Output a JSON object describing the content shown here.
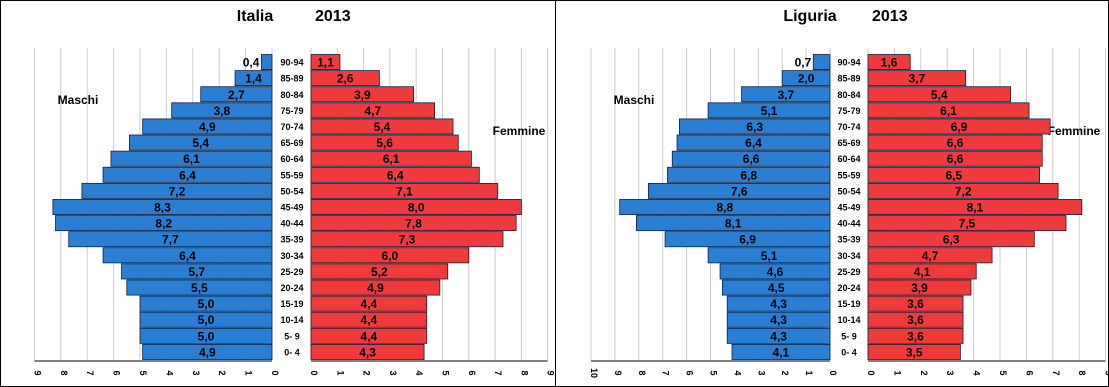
{
  "colors": {
    "male": "#2a7fd4",
    "female": "#ef3b3b",
    "grid": "#cccccc",
    "bar_edge": "#0f1f3a"
  },
  "chart_data": [
    {
      "type": "bar",
      "orientation": "horizontal-population-pyramid",
      "title_region": "Italia",
      "title_year": "2013",
      "left_label": "Maschi",
      "right_label": "Femmine",
      "categories": [
        "0- 4",
        "5- 9",
        "10-14",
        "15-19",
        "20-24",
        "25-29",
        "30-34",
        "35-39",
        "40-44",
        "45-49",
        "50-54",
        "55-59",
        "60-64",
        "65-69",
        "70-74",
        "75-79",
        "80-84",
        "85-89",
        "90-94"
      ],
      "series": [
        {
          "name": "Maschi",
          "values": [
            4.9,
            5.0,
            5.0,
            5.0,
            5.5,
            5.7,
            6.4,
            7.7,
            8.2,
            8.3,
            7.2,
            6.4,
            6.1,
            5.4,
            4.9,
            3.8,
            2.7,
            1.4,
            0.4
          ]
        },
        {
          "name": "Femmine",
          "values": [
            4.3,
            4.4,
            4.4,
            4.4,
            4.9,
            5.2,
            6.0,
            7.3,
            7.8,
            8.0,
            7.1,
            6.4,
            6.1,
            5.6,
            5.4,
            4.7,
            3.9,
            2.6,
            1.1
          ]
        }
      ],
      "male_labels": [
        "4,9",
        "5,0",
        "5,0",
        "5,0",
        "5,5",
        "5,7",
        "6,4",
        "7,7",
        "8,2",
        "8,3",
        "7,2",
        "6,4",
        "6,1",
        "5,4",
        "4,9",
        "3,8",
        "2,7",
        "1,4",
        "0,4"
      ],
      "female_labels": [
        "4,3",
        "4,4",
        "4,4",
        "4,4",
        "4,9",
        "5,2",
        "6,0",
        "7,3",
        "7,8",
        "8,0",
        "7,1",
        "6,4",
        "6,1",
        "5,6",
        "5,4",
        "4,7",
        "3,9",
        "2,6",
        "1,1"
      ],
      "left_ticks": [
        "9",
        "8",
        "7",
        "6",
        "5",
        "4",
        "3",
        "2",
        "1",
        "0"
      ],
      "right_ticks": [
        "0",
        "1",
        "2",
        "3",
        "4",
        "5",
        "6",
        "7",
        "8",
        "9"
      ],
      "xlim": [
        0,
        9
      ],
      "grid": true
    },
    {
      "type": "bar",
      "orientation": "horizontal-population-pyramid",
      "title_region": "Liguria",
      "title_year": "2013",
      "left_label": "Maschi",
      "right_label": "Femmine",
      "categories": [
        "0- 4",
        "5- 9",
        "10-14",
        "15-19",
        "20-24",
        "25-29",
        "30-34",
        "35-39",
        "40-44",
        "45-49",
        "50-54",
        "55-59",
        "60-64",
        "65-69",
        "70-74",
        "75-79",
        "80-84",
        "85-89",
        "90-94"
      ],
      "series": [
        {
          "name": "Maschi",
          "values": [
            4.1,
            4.3,
            4.3,
            4.3,
            4.5,
            4.6,
            5.1,
            6.9,
            8.1,
            8.8,
            7.6,
            6.8,
            6.6,
            6.4,
            6.3,
            5.1,
            3.7,
            2.0,
            0.7
          ]
        },
        {
          "name": "Femmine",
          "values": [
            3.5,
            3.6,
            3.6,
            3.6,
            3.9,
            4.1,
            4.7,
            6.3,
            7.5,
            8.1,
            7.2,
            6.5,
            6.6,
            6.6,
            6.9,
            6.1,
            5.4,
            3.7,
            1.6
          ]
        }
      ],
      "male_labels": [
        "4,1",
        "4,3",
        "4,3",
        "4,3",
        "4,5",
        "4,6",
        "5,1",
        "6,9",
        "8,1",
        "8,8",
        "7,6",
        "6,8",
        "6,6",
        "6,4",
        "6,3",
        "5,1",
        "3,7",
        "2,0",
        "0,7"
      ],
      "female_labels": [
        "3,5",
        "3,6",
        "3,6",
        "3,6",
        "3,9",
        "4,1",
        "4,7",
        "6,3",
        "7,5",
        "8,1",
        "7,2",
        "6,5",
        "6,6",
        "6,6",
        "6,9",
        "6,1",
        "5,4",
        "3,7",
        "1,6"
      ],
      "left_ticks": [
        "10",
        "9",
        "8",
        "7",
        "6",
        "5",
        "4",
        "3",
        "2",
        "1",
        "0"
      ],
      "right_ticks": [
        "0",
        "1",
        "2",
        "3",
        "4",
        "5",
        "6",
        "7",
        "8",
        "9"
      ],
      "xlim_left": [
        0,
        10
      ],
      "xlim_right": [
        0,
        9
      ],
      "grid": true
    }
  ]
}
